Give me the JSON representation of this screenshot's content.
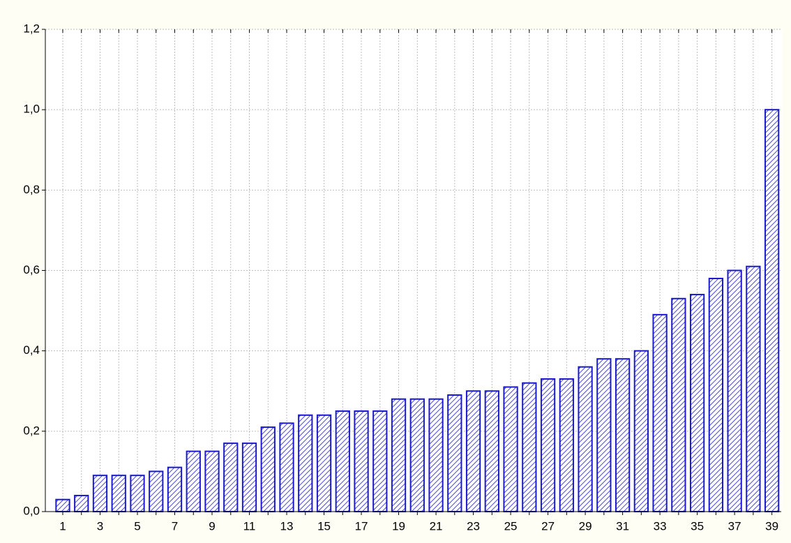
{
  "chart_data": {
    "type": "bar",
    "categories": [
      "1",
      null,
      "3",
      null,
      "5",
      null,
      "7",
      null,
      "9",
      null,
      "11",
      null,
      "13",
      null,
      "15",
      null,
      "17",
      null,
      "19",
      null,
      "21",
      null,
      "23",
      null,
      "25",
      null,
      "27",
      null,
      "29",
      null,
      "31",
      null,
      "33",
      null,
      "35",
      null,
      "37",
      null,
      "39"
    ],
    "values": [
      0.03,
      0.04,
      0.09,
      0.09,
      0.09,
      0.1,
      0.11,
      0.15,
      0.15,
      0.17,
      0.17,
      0.21,
      0.22,
      0.24,
      0.24,
      0.25,
      0.25,
      0.25,
      0.28,
      0.28,
      0.28,
      0.29,
      0.3,
      0.3,
      0.31,
      0.32,
      0.33,
      0.33,
      0.36,
      0.38,
      0.38,
      0.4,
      0.49,
      0.53,
      0.54,
      0.58,
      0.6,
      0.61,
      1.0
    ],
    "color": "#1a1acc",
    "ylim": [
      0,
      1.2
    ],
    "yticks": [
      {
        "value": 0,
        "label": "0,0"
      },
      {
        "value": 0.2,
        "label": "0,2"
      },
      {
        "value": 0.4,
        "label": "0,4"
      },
      {
        "value": 0.6,
        "label": "0,6"
      },
      {
        "value": 0.8,
        "label": "0,8"
      },
      {
        "value": 1.0,
        "label": "1,0"
      },
      {
        "value": 1.2,
        "label": "1,2"
      }
    ],
    "grid": true
  }
}
